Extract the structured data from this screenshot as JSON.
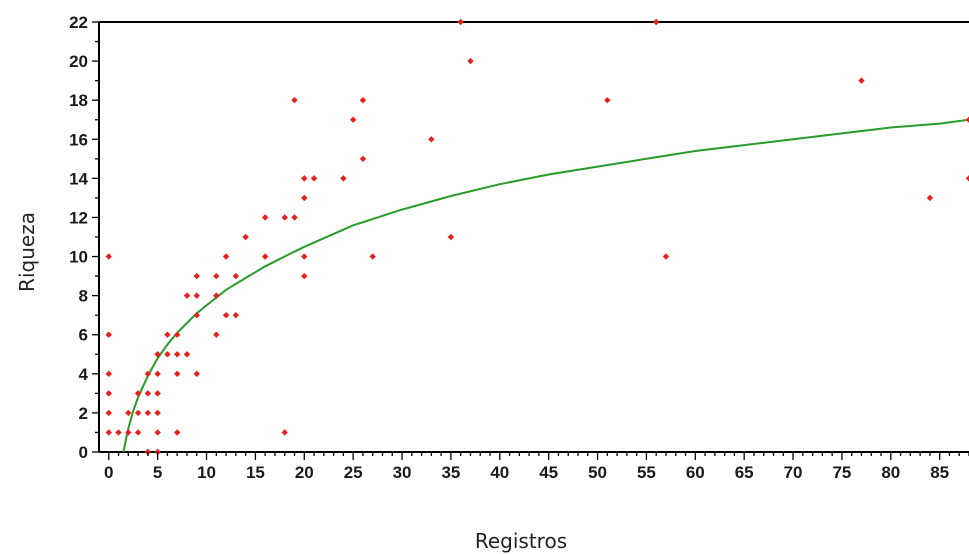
{
  "chart_data": {
    "type": "scatter",
    "title": "",
    "xlabel": "Registros",
    "ylabel": "Riqueza",
    "xlim": [
      -1,
      88
    ],
    "ylim": [
      0,
      22
    ],
    "xticks": [
      0,
      5,
      10,
      15,
      20,
      25,
      30,
      35,
      40,
      45,
      50,
      55,
      60,
      65,
      70,
      75,
      80,
      85
    ],
    "yticks": [
      0,
      2,
      4,
      6,
      8,
      10,
      12,
      14,
      16,
      18,
      20,
      22
    ],
    "grid": false,
    "legend": "none",
    "series": [
      {
        "kind": "points",
        "color": "#e8201c",
        "points": [
          [
            0,
            1
          ],
          [
            0,
            2
          ],
          [
            0,
            3
          ],
          [
            0,
            4
          ],
          [
            0,
            6
          ],
          [
            0,
            10
          ],
          [
            1,
            1
          ],
          [
            2,
            1
          ],
          [
            2,
            2
          ],
          [
            3,
            1
          ],
          [
            3,
            2
          ],
          [
            3,
            3
          ],
          [
            4,
            0
          ],
          [
            4,
            2
          ],
          [
            4,
            3
          ],
          [
            4,
            4
          ],
          [
            5,
            0
          ],
          [
            5,
            1
          ],
          [
            5,
            2
          ],
          [
            5,
            3
          ],
          [
            5,
            4
          ],
          [
            5,
            5
          ],
          [
            6,
            5
          ],
          [
            6,
            6
          ],
          [
            7,
            1
          ],
          [
            7,
            4
          ],
          [
            7,
            5
          ],
          [
            7,
            6
          ],
          [
            8,
            5
          ],
          [
            8,
            8
          ],
          [
            9,
            4
          ],
          [
            9,
            7
          ],
          [
            9,
            8
          ],
          [
            9,
            9
          ],
          [
            11,
            6
          ],
          [
            11,
            8
          ],
          [
            11,
            9
          ],
          [
            12,
            7
          ],
          [
            12,
            10
          ],
          [
            13,
            7
          ],
          [
            13,
            9
          ],
          [
            14,
            11
          ],
          [
            16,
            10
          ],
          [
            16,
            12
          ],
          [
            18,
            1
          ],
          [
            18,
            12
          ],
          [
            19,
            12
          ],
          [
            19,
            18
          ],
          [
            20,
            9
          ],
          [
            20,
            10
          ],
          [
            20,
            13
          ],
          [
            20,
            14
          ],
          [
            21,
            14
          ],
          [
            24,
            14
          ],
          [
            25,
            17
          ],
          [
            26,
            15
          ],
          [
            26,
            18
          ],
          [
            27,
            10
          ],
          [
            33,
            16
          ],
          [
            35,
            11
          ],
          [
            36,
            22
          ],
          [
            37,
            20
          ],
          [
            51,
            18
          ],
          [
            56,
            22
          ],
          [
            57,
            10
          ],
          [
            77,
            19
          ],
          [
            84,
            13
          ],
          [
            88,
            14
          ],
          [
            88,
            17
          ]
        ]
      },
      {
        "kind": "fit",
        "color": "#2a9a2a",
        "curve": [
          [
            1.5,
            0
          ],
          [
            1.8,
            0.75
          ],
          [
            2,
            1.2
          ],
          [
            2.5,
            2.1
          ],
          [
            3,
            2.8
          ],
          [
            4,
            3.9
          ],
          [
            5,
            4.8
          ],
          [
            6,
            5.5
          ],
          [
            7,
            6.1
          ],
          [
            8,
            6.6
          ],
          [
            9,
            7.1
          ],
          [
            10,
            7.5
          ],
          [
            12,
            8.3
          ],
          [
            14,
            8.9
          ],
          [
            16,
            9.5
          ],
          [
            18,
            10
          ],
          [
            20,
            10.5
          ],
          [
            25,
            11.6
          ],
          [
            30,
            12.4
          ],
          [
            35,
            13.1
          ],
          [
            40,
            13.7
          ],
          [
            45,
            14.2
          ],
          [
            50,
            14.6
          ],
          [
            55,
            15
          ],
          [
            60,
            15.4
          ],
          [
            65,
            15.7
          ],
          [
            70,
            16
          ],
          [
            75,
            16.3
          ],
          [
            80,
            16.6
          ],
          [
            85,
            16.8
          ],
          [
            88,
            17
          ]
        ]
      }
    ]
  }
}
